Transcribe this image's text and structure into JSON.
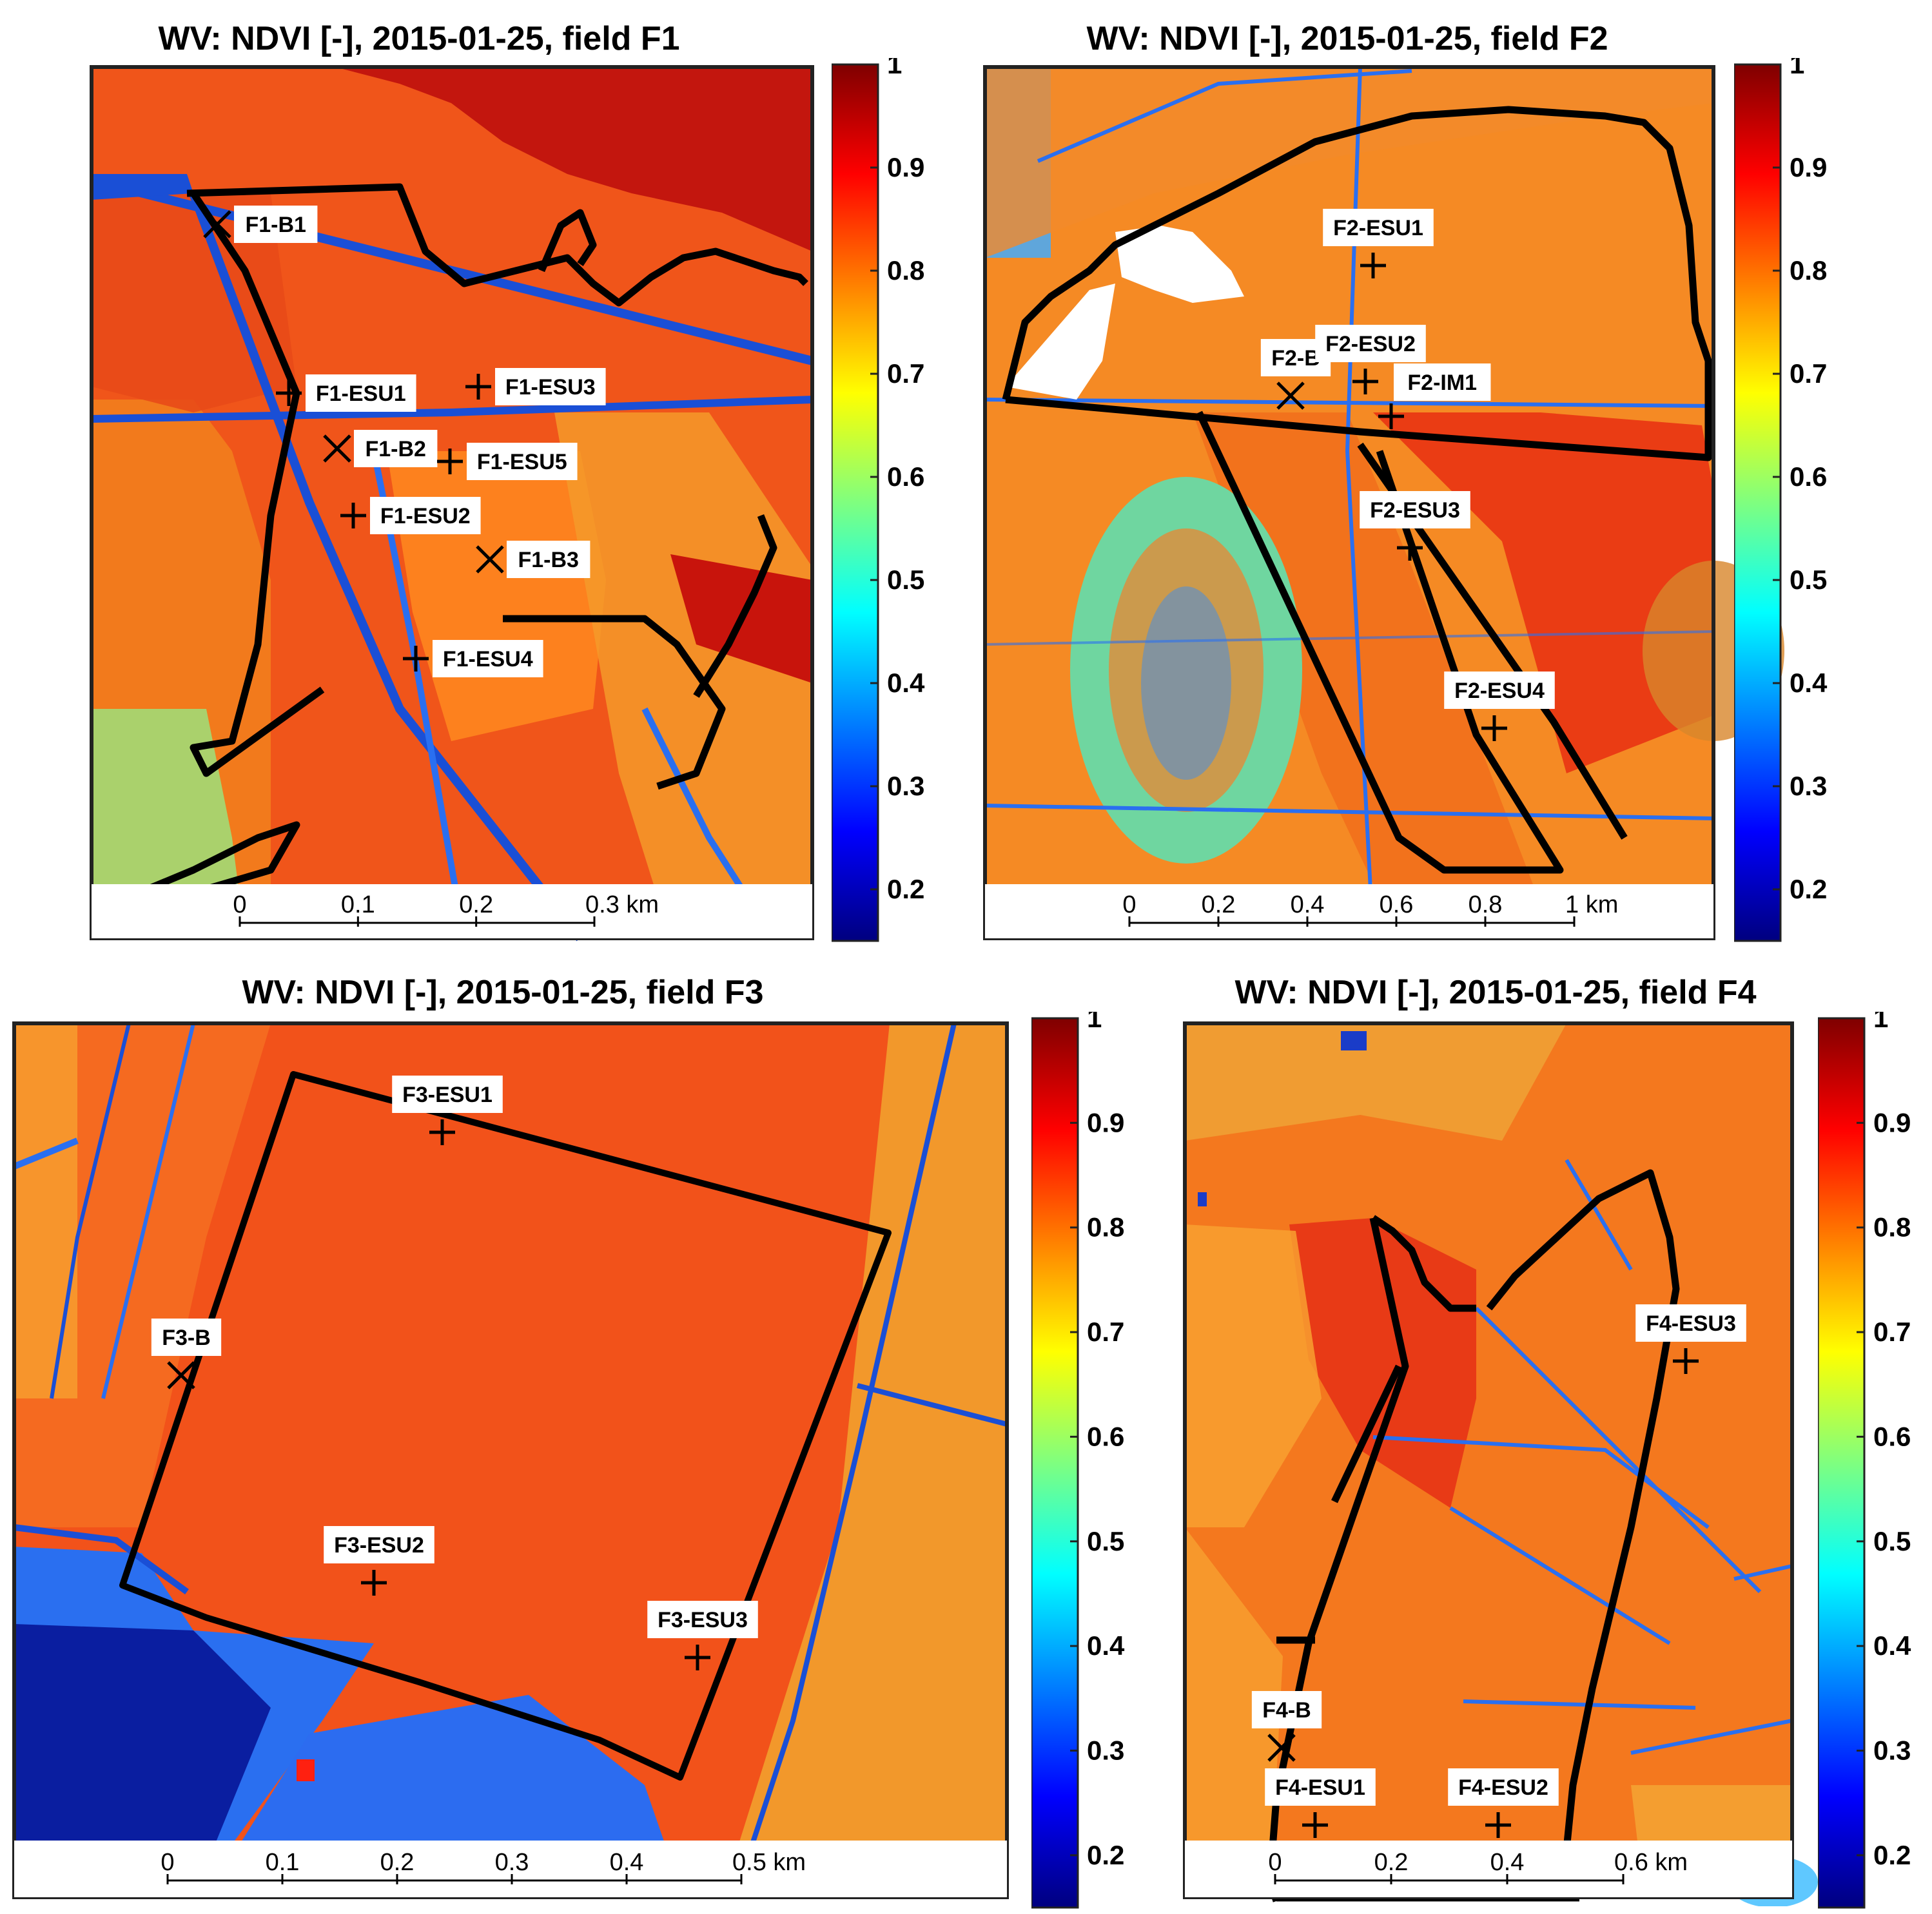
{
  "colormap": {
    "stops": [
      "#00007f",
      "#0000ff",
      "#007fff",
      "#00ffff",
      "#7fff7f",
      "#ffff00",
      "#ff7f00",
      "#ff0000",
      "#7f0000"
    ],
    "ticks": [
      "1",
      "0.9",
      "0.8",
      "0.7",
      "0.6",
      "0.5",
      "0.4",
      "0.3",
      "0.2"
    ]
  },
  "panels": [
    {
      "title": "WV: NDVI [-], 2015-01-25, field F1",
      "scalebar": {
        "ticks": [
          "0",
          "0.1",
          "0.2",
          "0.3 km"
        ]
      },
      "markers": [
        {
          "type": "x",
          "label": "F1-B1"
        },
        {
          "type": "plus",
          "label": "F1-ESU1"
        },
        {
          "type": "plus",
          "label": "F1-ESU3"
        },
        {
          "type": "x",
          "label": "F1-B2"
        },
        {
          "type": "plus",
          "label": "F1-ESU5"
        },
        {
          "type": "plus",
          "label": "F1-ESU2"
        },
        {
          "type": "x",
          "label": "F1-B3"
        },
        {
          "type": "plus",
          "label": "F1-ESU4"
        }
      ]
    },
    {
      "title": "WV: NDVI [-], 2015-01-25, field F2",
      "scalebar": {
        "ticks": [
          "0",
          "0.2",
          "0.4",
          "0.6",
          "0.8",
          "1 km"
        ]
      },
      "markers": [
        {
          "type": "plus",
          "label": "F2-ESU1"
        },
        {
          "type": "x",
          "label": "F2-B"
        },
        {
          "type": "plus",
          "label": "F2-ESU2"
        },
        {
          "type": "plus",
          "label": "F2-IM1"
        },
        {
          "type": "plus",
          "label": "F2-ESU3"
        },
        {
          "type": "plus",
          "label": "F2-ESU4"
        }
      ]
    },
    {
      "title": "WV: NDVI [-], 2015-01-25, field F3",
      "scalebar": {
        "ticks": [
          "0",
          "0.1",
          "0.2",
          "0.3",
          "0.4",
          "0.5 km"
        ]
      },
      "markers": [
        {
          "type": "plus",
          "label": "F3-ESU1"
        },
        {
          "type": "x",
          "label": "F3-B"
        },
        {
          "type": "plus",
          "label": "F3-ESU2"
        },
        {
          "type": "plus",
          "label": "F3-ESU3"
        }
      ]
    },
    {
      "title": "WV: NDVI [-], 2015-01-25, field F4",
      "scalebar": {
        "ticks": [
          "0",
          "0.2",
          "0.4",
          "0.6 km"
        ]
      },
      "markers": [
        {
          "type": "plus",
          "label": "F4-ESU3"
        },
        {
          "type": "x",
          "label": "F4-B"
        },
        {
          "type": "plus",
          "label": "F4-ESU1"
        },
        {
          "type": "plus",
          "label": "F4-ESU2"
        }
      ]
    }
  ]
}
